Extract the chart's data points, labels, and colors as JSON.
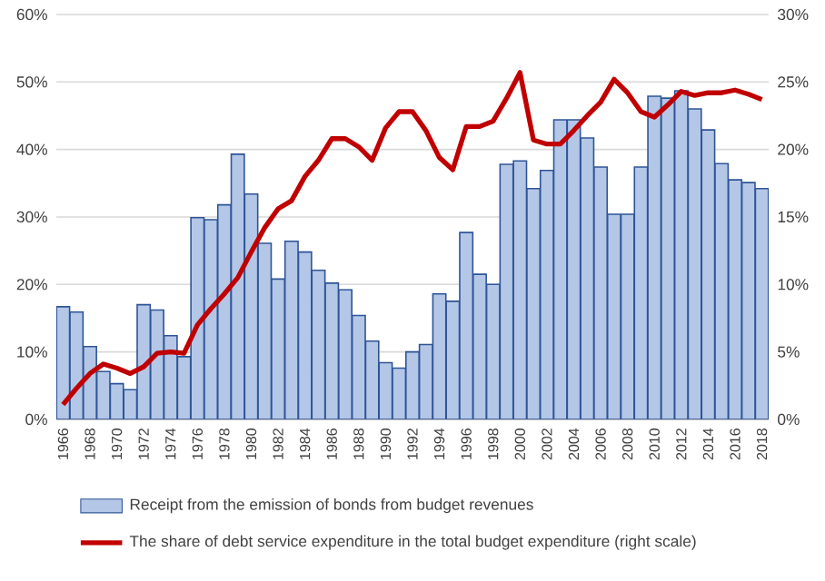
{
  "chart_data": {
    "type": "bar",
    "categories": [
      "1966",
      null,
      "1968",
      null,
      "1970",
      null,
      "1972",
      null,
      "1974",
      null,
      "1976",
      null,
      "1978",
      null,
      "1980",
      null,
      "1982",
      null,
      "1984",
      null,
      "1986",
      null,
      "1988",
      null,
      "1990",
      null,
      "1992",
      null,
      "1994",
      null,
      "1996",
      null,
      "1998",
      null,
      "2000",
      null,
      "2002",
      null,
      "2004",
      null,
      "2006",
      null,
      "2008",
      null,
      "2010",
      null,
      "2012",
      null,
      "2014",
      null,
      "2016",
      null,
      "2018"
    ],
    "series": [
      {
        "name": "Receipt from the emission of bonds from budget revenues",
        "color": "#b4c7e7",
        "values": [
          16.7,
          15.9,
          10.8,
          7.1,
          5.3,
          4.4,
          17.0,
          16.2,
          12.4,
          9.3,
          29.9,
          29.6,
          31.8,
          39.3,
          33.4,
          26.1,
          20.8,
          26.4,
          24.8,
          22.1,
          20.2,
          19.2,
          15.4,
          11.6,
          8.4,
          7.6,
          10.0,
          11.1,
          18.6,
          17.5,
          27.7,
          21.5,
          20.0,
          37.8,
          38.3,
          34.2,
          36.9,
          44.4,
          44.4,
          41.7,
          37.4,
          30.4,
          30.4,
          37.4,
          47.9,
          47.6,
          48.7,
          46.0,
          42.9,
          37.9,
          35.5,
          35.1,
          34.2
        ]
      },
      {
        "name": "The share of debt service expenditure in the total budget expenditure (right scale)",
        "type": "line",
        "axis": "y2",
        "color": "#c00000",
        "values": [
          1.1,
          2.3,
          3.4,
          4.1,
          3.8,
          3.4,
          3.9,
          4.9,
          5.0,
          4.9,
          7.0,
          8.2,
          9.3,
          10.5,
          12.4,
          14.2,
          15.6,
          16.2,
          18.0,
          19.2,
          20.8,
          20.8,
          20.2,
          19.2,
          21.6,
          22.8,
          22.8,
          21.4,
          19.4,
          18.5,
          21.7,
          21.7,
          22.1,
          23.8,
          25.7,
          20.7,
          20.4,
          20.4,
          21.4,
          22.5,
          23.5,
          25.2,
          24.2,
          22.8,
          22.4,
          23.3,
          24.3,
          24.0,
          24.2,
          24.2,
          24.4,
          24.1,
          23.7
        ]
      }
    ],
    "ylim": [
      0,
      60
    ],
    "yticks": [
      {
        "value": 0,
        "label": "0%"
      },
      {
        "value": 10,
        "label": "10%"
      },
      {
        "value": 20,
        "label": "20%"
      },
      {
        "value": 30,
        "label": "30%"
      },
      {
        "value": 40,
        "label": "40%"
      },
      {
        "value": 50,
        "label": "50%"
      },
      {
        "value": 60,
        "label": "60%"
      }
    ],
    "y2lim": [
      0,
      30
    ],
    "y2ticks": [
      {
        "value": 0,
        "label": "0%"
      },
      {
        "value": 5,
        "label": "5%"
      },
      {
        "value": 10,
        "label": "10%"
      },
      {
        "value": 15,
        "label": "15%"
      },
      {
        "value": 20,
        "label": "20%"
      },
      {
        "value": 25,
        "label": "25%"
      },
      {
        "value": 30,
        "label": "30%"
      }
    ],
    "grid": "y",
    "legend": "bottom"
  }
}
